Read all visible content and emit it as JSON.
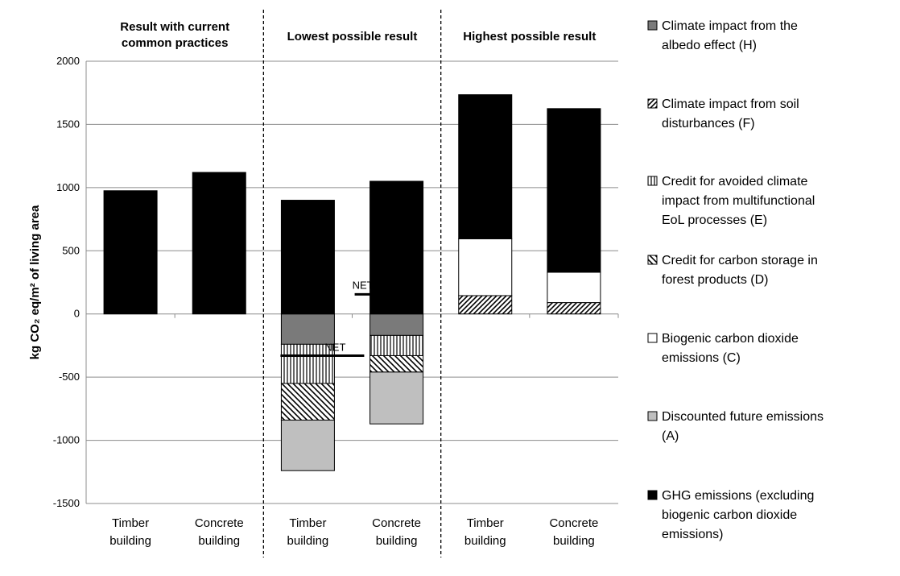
{
  "chart_data": {
    "type": "bar",
    "stacked": true,
    "ylabel": "kg CO₂ eq/m² of living area",
    "ylim": [
      -1500,
      2000
    ],
    "yticks": [
      2000,
      1500,
      1000,
      500,
      0,
      -500,
      -1000,
      -1500
    ],
    "grid": true,
    "legend_position": "right",
    "groups": [
      {
        "title_lines": [
          "Result with current",
          "common practices"
        ]
      },
      {
        "title_lines": [
          "Lowest possible result"
        ]
      },
      {
        "title_lines": [
          "Highest possible result"
        ]
      }
    ],
    "categories": [
      {
        "lines": [
          "Timber",
          "building"
        ]
      },
      {
        "lines": [
          "Concrete",
          "building"
        ]
      },
      {
        "lines": [
          "Timber",
          "building"
        ]
      },
      {
        "lines": [
          "Concrete",
          "building"
        ]
      },
      {
        "lines": [
          "Timber",
          "building"
        ]
      },
      {
        "lines": [
          "Concrete",
          "building"
        ]
      }
    ],
    "series": [
      {
        "key": "H",
        "pattern": "gray",
        "legend_lines": [
          "Climate impact from the",
          "albedo effect (H)"
        ],
        "values": [
          0,
          0,
          -240,
          -170,
          0,
          0
        ]
      },
      {
        "key": "F",
        "pattern": "diag-fine",
        "legend_lines": [
          "Climate impact from soil",
          "disturbances (F)"
        ],
        "values": [
          0,
          0,
          0,
          0,
          145,
          90
        ]
      },
      {
        "key": "E",
        "pattern": "vertical",
        "legend_lines": [
          "Credit for avoided climate",
          "impact from multifunctional",
          "EoL processes (E)"
        ],
        "values": [
          0,
          0,
          -310,
          -160,
          0,
          0
        ]
      },
      {
        "key": "D",
        "pattern": "diag-back",
        "legend_lines": [
          "Credit for carbon storage in",
          "forest products (D)"
        ],
        "values": [
          0,
          0,
          -290,
          -130,
          0,
          0
        ]
      },
      {
        "key": "C",
        "pattern": "white",
        "legend_lines": [
          "Biogenic carbon dioxide",
          "emissions (C)"
        ],
        "values": [
          0,
          0,
          0,
          0,
          450,
          240
        ]
      },
      {
        "key": "A",
        "pattern": "lightgray",
        "legend_lines": [
          "Discounted future emissions",
          "(A)"
        ],
        "values": [
          0,
          0,
          -400,
          -410,
          0,
          0
        ]
      },
      {
        "key": "GHG",
        "pattern": "black",
        "legend_lines": [
          "GHG emissions (excluding",
          "biogenic carbon dioxide",
          "emissions)"
        ],
        "values": [
          975,
          1120,
          900,
          1050,
          1140,
          1295
        ]
      }
    ],
    "annotations": [
      {
        "text": "NET",
        "category_index": 2,
        "value": -330
      },
      {
        "text": "NET",
        "category_index": 3,
        "value": 155
      }
    ]
  }
}
